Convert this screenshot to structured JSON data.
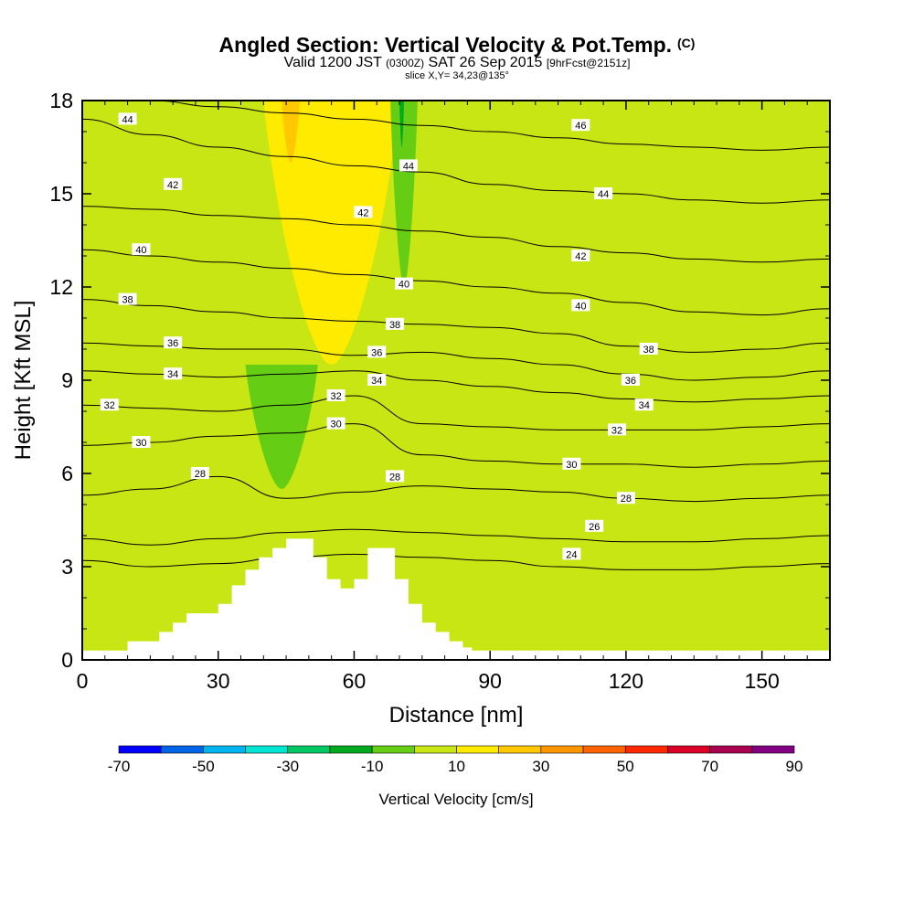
{
  "chart_data": {
    "type": "heatmap",
    "title": "Angled Section: Vertical Velocity & Pot.Temp.",
    "title_mark": "(C)",
    "subtitle": {
      "valid": "Valid 1200 JST",
      "utc": "(0300Z)",
      "date": "SAT 26 Sep 2015",
      "fcst": "[9hrFcst@2151z]"
    },
    "slice_label": "slice X,Y= 34,23@135°",
    "xlabel": "Distance [nm]",
    "ylabel": "Height [Kft MSL]",
    "xlim": [
      0,
      165
    ],
    "ylim": [
      0,
      18
    ],
    "x_ticks": [
      0,
      30,
      60,
      90,
      120,
      150
    ],
    "y_ticks": [
      0,
      3,
      6,
      9,
      12,
      15,
      18
    ],
    "grid": false,
    "colorbar": {
      "title": "Vertical Velocity [cm/s]",
      "range": [
        -70,
        90
      ],
      "step": 10,
      "tick_labels": [
        "-70",
        "-50",
        "-30",
        "-10",
        "10",
        "30",
        "50",
        "70",
        "90"
      ],
      "colors": [
        "#0000ff",
        "#0064e6",
        "#00b4f0",
        "#00e6d2",
        "#00c864",
        "#00aa1e",
        "#64cd14",
        "#c8e614",
        "#ffeb00",
        "#ffc800",
        "#ff9600",
        "#ff6400",
        "#ff2800",
        "#dc0028",
        "#aa0050",
        "#820082"
      ],
      "placement": "bottom"
    },
    "velocity_field": {
      "background_band": "0 to 10",
      "regions": [
        {
          "band": "10 to 20",
          "x_range": [
            40,
            70
          ],
          "z_range": [
            9.5,
            18
          ]
        },
        {
          "band": "20 to 30",
          "x_range": [
            44,
            48
          ],
          "z_range": [
            16,
            18
          ]
        },
        {
          "band": "-10 to 0",
          "x_range": [
            36,
            52
          ],
          "z_range": [
            5.5,
            9.5
          ]
        },
        {
          "band": "-10 to 0",
          "x_range": [
            68,
            74
          ],
          "z_range": [
            12,
            18
          ]
        },
        {
          "band": "-20 to -10",
          "x_range": [
            70,
            71
          ],
          "z_range": [
            16.5,
            18
          ]
        }
      ]
    },
    "terrain_profile": {
      "x": [
        0,
        10,
        17,
        20,
        23,
        30,
        33,
        36,
        39,
        42,
        45,
        48,
        51,
        54,
        57,
        60,
        63,
        66,
        69,
        72,
        75,
        78,
        81,
        84,
        86,
        88,
        165
      ],
      "z": [
        0.3,
        0.6,
        0.9,
        1.2,
        1.5,
        1.8,
        2.4,
        2.9,
        3.3,
        3.6,
        3.9,
        3.9,
        3.3,
        2.6,
        2.3,
        2.6,
        3.6,
        3.6,
        2.6,
        1.8,
        1.2,
        0.9,
        0.6,
        0.4,
        0.3,
        0.3,
        0.3
      ]
    },
    "isentropes": {
      "name": "Pot.Temp.",
      "units": "C",
      "levels": [
        {
          "value": 24,
          "heights": [
            3.2,
            3.0,
            3.1,
            3.3,
            3.4,
            3.3,
            3.2,
            3.0,
            2.9,
            2.9,
            3.0,
            3.1
          ]
        },
        {
          "value": 26,
          "heights": [
            3.9,
            3.7,
            3.9,
            4.1,
            4.2,
            4.1,
            4.0,
            3.9,
            3.8,
            3.8,
            3.9,
            4.0
          ]
        },
        {
          "value": 28,
          "heights": [
            5.3,
            5.5,
            5.9,
            5.2,
            5.4,
            5.6,
            5.5,
            5.4,
            5.2,
            5.1,
            5.2,
            5.3
          ]
        },
        {
          "value": 30,
          "heights": [
            6.9,
            7.0,
            7.2,
            7.3,
            7.6,
            6.6,
            6.4,
            6.3,
            6.3,
            6.2,
            6.3,
            6.4
          ]
        },
        {
          "value": 32,
          "heights": [
            8.2,
            8.1,
            8.0,
            8.2,
            8.5,
            7.6,
            7.5,
            7.4,
            7.4,
            7.4,
            7.5,
            7.6
          ]
        },
        {
          "value": 34,
          "heights": [
            9.3,
            9.2,
            9.1,
            9.2,
            9.3,
            9.0,
            8.8,
            8.6,
            8.4,
            8.3,
            8.4,
            8.5
          ]
        },
        {
          "value": 36,
          "heights": [
            10.2,
            10.1,
            10.0,
            10.0,
            9.8,
            9.9,
            9.7,
            9.5,
            9.2,
            9.0,
            9.1,
            9.3
          ]
        },
        {
          "value": 38,
          "heights": [
            11.6,
            11.4,
            11.2,
            11.0,
            10.9,
            10.8,
            10.7,
            10.5,
            10.1,
            9.9,
            10.0,
            10.2
          ]
        },
        {
          "value": 40,
          "heights": [
            13.2,
            13.0,
            12.8,
            12.6,
            12.4,
            12.2,
            12.0,
            11.8,
            11.5,
            11.2,
            11.1,
            11.3
          ]
        },
        {
          "value": 42,
          "heights": [
            14.6,
            14.5,
            14.3,
            14.2,
            14.0,
            13.8,
            13.6,
            13.3,
            13.1,
            12.9,
            12.8,
            12.9
          ]
        },
        {
          "value": 44,
          "heights": [
            17.4,
            16.9,
            16.5,
            16.2,
            15.9,
            15.7,
            15.3,
            15.1,
            15.0,
            14.8,
            14.7,
            14.8
          ]
        },
        {
          "value": 46,
          "heights": [
            18.0,
            18.0,
            17.8,
            17.6,
            17.4,
            17.2,
            17.0,
            16.8,
            16.6,
            16.5,
            16.4,
            16.5
          ]
        }
      ],
      "x": [
        0,
        15,
        30,
        45,
        60,
        75,
        90,
        105,
        120,
        135,
        150,
        165
      ]
    },
    "contour_labels": [
      {
        "text": "44",
        "x": 10,
        "z": 17.4
      },
      {
        "text": "42",
        "x": 20,
        "z": 15.3
      },
      {
        "text": "40",
        "x": 13,
        "z": 13.2
      },
      {
        "text": "38",
        "x": 10,
        "z": 11.6
      },
      {
        "text": "36",
        "x": 20,
        "z": 10.2
      },
      {
        "text": "34",
        "x": 20,
        "z": 9.2
      },
      {
        "text": "32",
        "x": 6,
        "z": 8.2
      },
      {
        "text": "30",
        "x": 13,
        "z": 7.0
      },
      {
        "text": "28",
        "x": 26,
        "z": 6.0
      },
      {
        "text": "46",
        "x": 110,
        "z": 17.2
      },
      {
        "text": "44",
        "x": 72,
        "z": 15.9
      },
      {
        "text": "44",
        "x": 115,
        "z": 15.0
      },
      {
        "text": "42",
        "x": 62,
        "z": 14.4
      },
      {
        "text": "42",
        "x": 110,
        "z": 13.0
      },
      {
        "text": "40",
        "x": 71,
        "z": 12.1
      },
      {
        "text": "40",
        "x": 110,
        "z": 11.4
      },
      {
        "text": "38",
        "x": 69,
        "z": 10.8
      },
      {
        "text": "38",
        "x": 125,
        "z": 10.0
      },
      {
        "text": "36",
        "x": 65,
        "z": 9.9
      },
      {
        "text": "36",
        "x": 121,
        "z": 9.0
      },
      {
        "text": "34",
        "x": 65,
        "z": 9.0
      },
      {
        "text": "34",
        "x": 124,
        "z": 8.2
      },
      {
        "text": "32",
        "x": 56,
        "z": 8.5
      },
      {
        "text": "32",
        "x": 118,
        "z": 7.4
      },
      {
        "text": "30",
        "x": 56,
        "z": 7.6
      },
      {
        "text": "30",
        "x": 108,
        "z": 6.3
      },
      {
        "text": "28",
        "x": 69,
        "z": 5.9
      },
      {
        "text": "28",
        "x": 120,
        "z": 5.2
      },
      {
        "text": "26",
        "x": 113,
        "z": 4.3
      },
      {
        "text": "24",
        "x": 108,
        "z": 3.4
      }
    ]
  }
}
